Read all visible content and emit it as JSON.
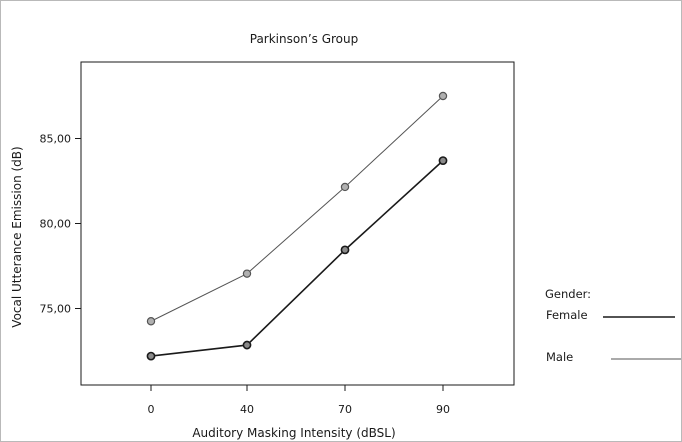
{
  "chart_data": {
    "type": "line",
    "title": "Parkinson’s Group",
    "xlabel": "Auditory Masking Intensity (dBSL)",
    "ylabel": "Vocal Utterance Emission (dB)",
    "categories": [
      "0",
      "40",
      "70",
      "90"
    ],
    "yticks": [
      "75,00",
      "80,00",
      "85,00"
    ],
    "yticks_values": [
      75,
      80,
      85
    ],
    "ylim": [
      70.5,
      89.5
    ],
    "series": [
      {
        "name": "Female",
        "values": [
          72.2,
          72.85,
          78.45,
          83.7
        ],
        "color": "#1a1a1a"
      },
      {
        "name": "Male",
        "values": [
          74.25,
          77.05,
          82.15,
          87.5
        ],
        "color": "#555555"
      }
    ],
    "legend": {
      "title": "Gender:",
      "placement": "right",
      "items": [
        "Female",
        "Male"
      ]
    },
    "grid": false
  }
}
